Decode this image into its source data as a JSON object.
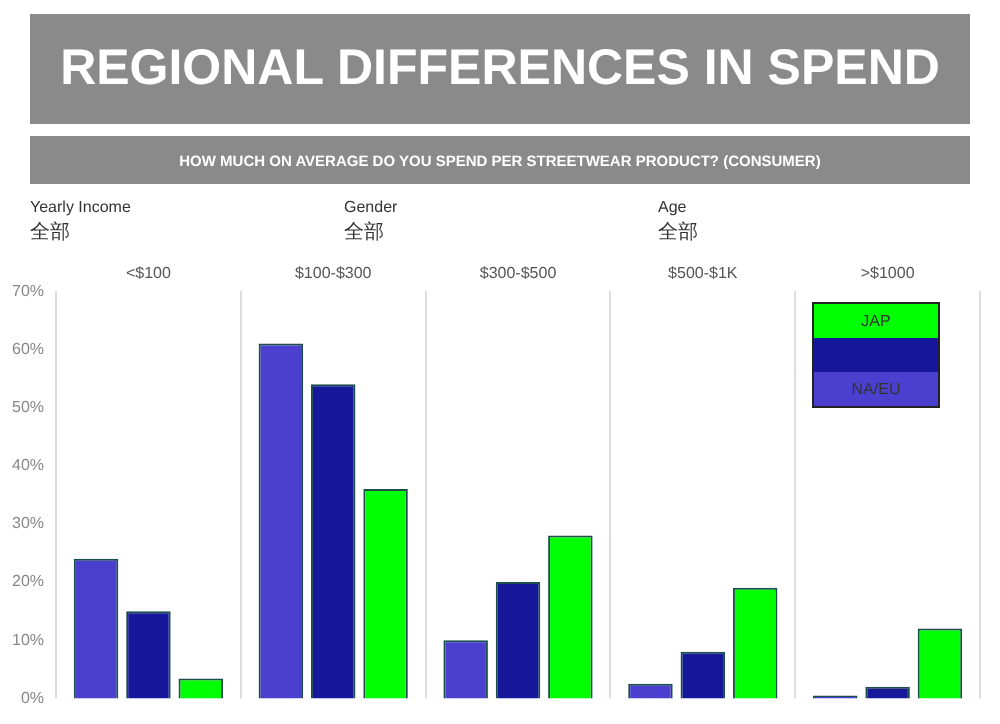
{
  "chart_data": {
    "type": "bar",
    "title": "REGIONAL DIFFERENCES IN SPEND",
    "subtitle": "HOW MUCH ON AVERAGE DO YOU SPEND PER STREETWEAR PRODUCT? (CONSUMER)",
    "annotations": [
      "Yearly Income",
      "全部",
      "Gender",
      "全部",
      "Age",
      "全部"
    ],
    "categories": [
      "<$100",
      "$100-$300",
      "$300-$500",
      "$500-$1K",
      ">$1000"
    ],
    "series": [
      {
        "name": "NA/EU",
        "color": "#4b3fcf",
        "values": [
          24,
          61,
          10,
          2.5,
          0.5
        ]
      },
      {
        "color": "#16179a",
        "values": [
          15,
          54,
          20,
          8,
          2
        ]
      },
      {
        "name": "JAP",
        "color": "#00ff00",
        "values": [
          3.4,
          36,
          28,
          19,
          12
        ]
      }
    ],
    "ylim": [
      0,
      70
    ],
    "yticks": [
      {
        "value": 0,
        "label": "0%"
      },
      {
        "value": 10,
        "label": "10%"
      },
      {
        "value": 20,
        "label": "20%"
      },
      {
        "value": 30,
        "label": "30%"
      },
      {
        "value": 40,
        "label": "40%"
      },
      {
        "value": 50,
        "label": "50%"
      },
      {
        "value": 60,
        "label": "60%"
      },
      {
        "value": 70,
        "label": "70%"
      }
    ],
    "grid": "x",
    "legend": "top right"
  }
}
